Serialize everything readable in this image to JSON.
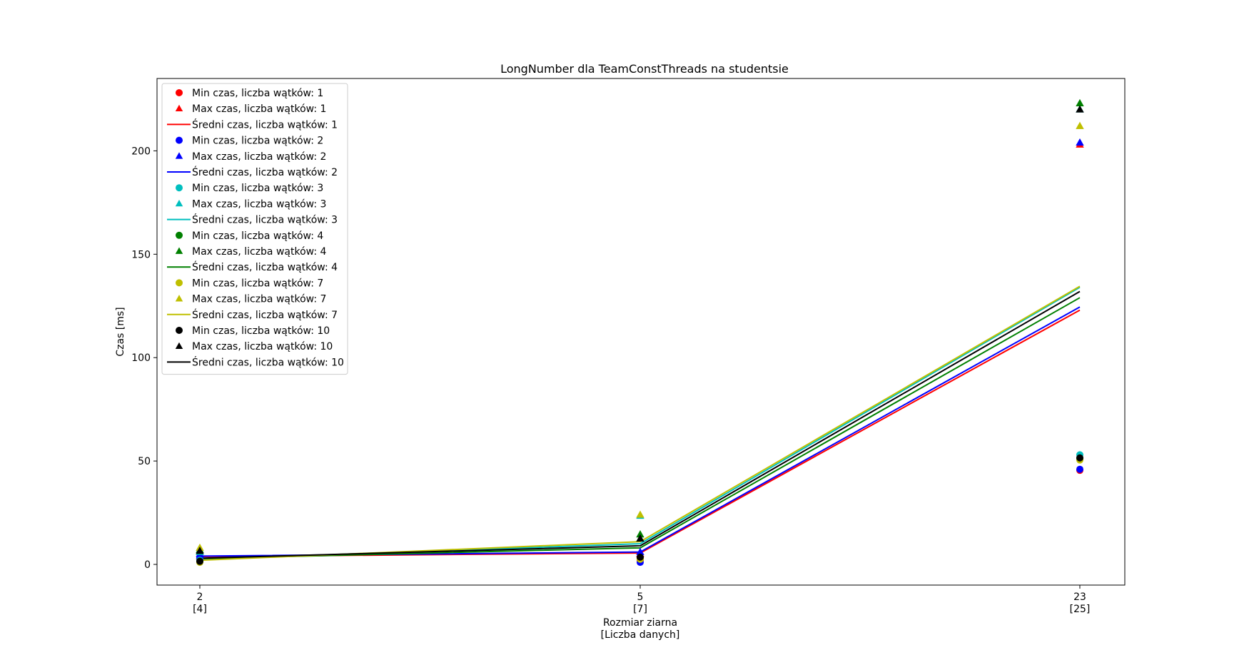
{
  "chart_data": {
    "type": "line",
    "title": "LongNumber dla TeamConstThreads na studentsie",
    "xlabel": [
      "Rozmiar ziarna",
      "[Liczba danych]"
    ],
    "ylabel": "Czas [ms]",
    "categories": [
      {
        "top": "2",
        "bottom": "[4]"
      },
      {
        "top": "5",
        "bottom": "[7]"
      },
      {
        "top": "23",
        "bottom": "[25]"
      }
    ],
    "yticks": [
      "0",
      "50",
      "100",
      "150",
      "200"
    ],
    "ylim": [
      -10,
      235
    ],
    "legend_position": "upper-left",
    "series": [
      {
        "threads": "1",
        "color": "#ff0000",
        "min": [
          2,
          2,
          45.5
        ],
        "max": [
          4,
          5,
          203
        ],
        "avg": [
          3.8,
          5.5,
          123
        ]
      },
      {
        "threads": "2",
        "color": "#0000ff",
        "min": [
          3,
          1,
          46
        ],
        "max": [
          5,
          6,
          204
        ],
        "avg": [
          4,
          6,
          124.5
        ]
      },
      {
        "threads": "3",
        "color": "#00bfbf",
        "min": [
          2,
          3,
          53
        ],
        "max": [
          6,
          23.5,
          220
        ],
        "avg": [
          2.5,
          10,
          134
        ]
      },
      {
        "threads": "4",
        "color": "#008000",
        "min": [
          1.5,
          3,
          51
        ],
        "max": [
          7,
          14.5,
          223
        ],
        "avg": [
          2.8,
          8,
          129
        ]
      },
      {
        "threads": "7",
        "color": "#bfbf00",
        "min": [
          1,
          2.5,
          50.5
        ],
        "max": [
          8,
          24,
          212
        ],
        "avg": [
          2,
          11,
          134.5
        ]
      },
      {
        "threads": "10",
        "color": "#000000",
        "min": [
          1.5,
          3.5,
          51.5
        ],
        "max": [
          6.5,
          12.5,
          220
        ],
        "avg": [
          3,
          9,
          132
        ]
      }
    ],
    "legend_labels": {
      "min": "Min czas, liczba wątków: ",
      "max": "Max czas, liczba wątków: ",
      "avg": "Średni czas, liczba wątków: "
    }
  }
}
